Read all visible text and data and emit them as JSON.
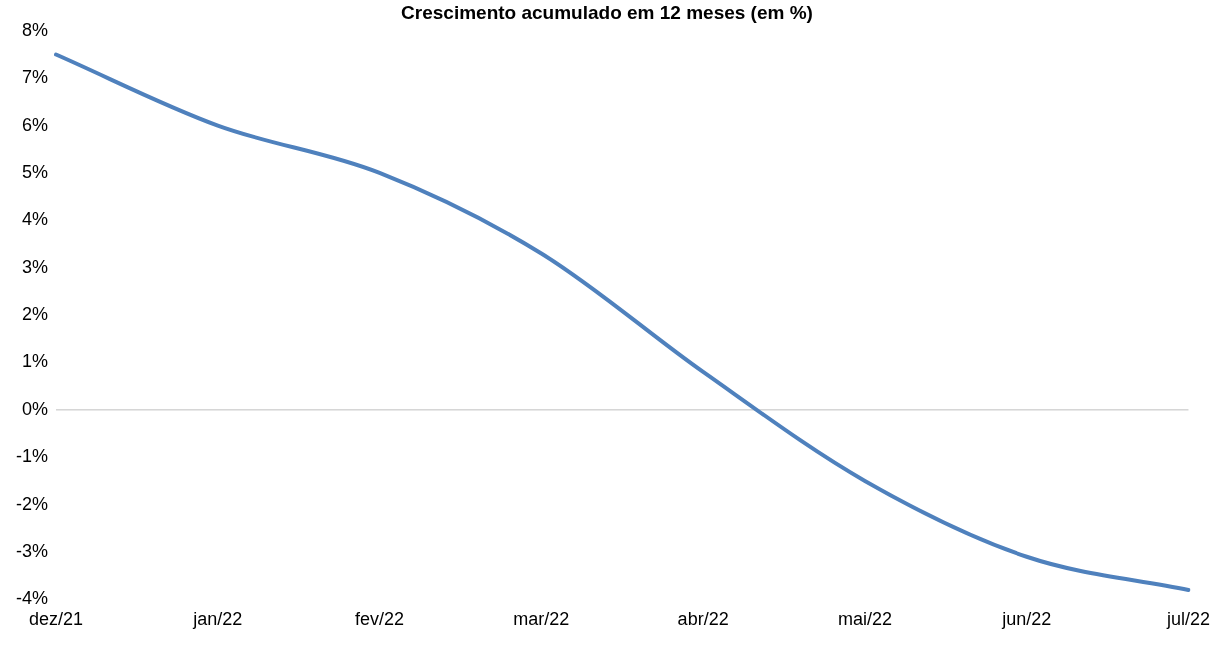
{
  "chart_data": {
    "type": "line",
    "title": "Crescimento acumulado em 12 meses (em %)",
    "categories": [
      "dez/21",
      "jan/22",
      "fev/22",
      "mar/22",
      "abr/22",
      "mai/22",
      "jun/22",
      "jul/22"
    ],
    "series": [
      {
        "color": "#4f81bd",
        "values": [
          7.5,
          6.0,
          5.0,
          3.3,
          0.8,
          -1.5,
          -3.1,
          -3.8
        ]
      }
    ],
    "ylim": [
      -4,
      8
    ],
    "yticks": [
      {
        "value": -4,
        "label": "-4%"
      },
      {
        "value": -3,
        "label": "-3%"
      },
      {
        "value": -2,
        "label": "-2%"
      },
      {
        "value": -1,
        "label": "-1%"
      },
      {
        "value": 0,
        "label": "0%"
      },
      {
        "value": 1,
        "label": "1%"
      },
      {
        "value": 2,
        "label": "2%"
      },
      {
        "value": 3,
        "label": "3%"
      },
      {
        "value": 4,
        "label": "4%"
      },
      {
        "value": 5,
        "label": "5%"
      },
      {
        "value": 6,
        "label": "6%"
      },
      {
        "value": 7,
        "label": "7%"
      },
      {
        "value": 8,
        "label": "8%"
      }
    ],
    "ref_lines": [
      {
        "axis": "y",
        "value": 0,
        "color": "#bfbfbf"
      }
    ],
    "marker": "none",
    "line_style": "solid",
    "legend": false,
    "grid": false
  }
}
